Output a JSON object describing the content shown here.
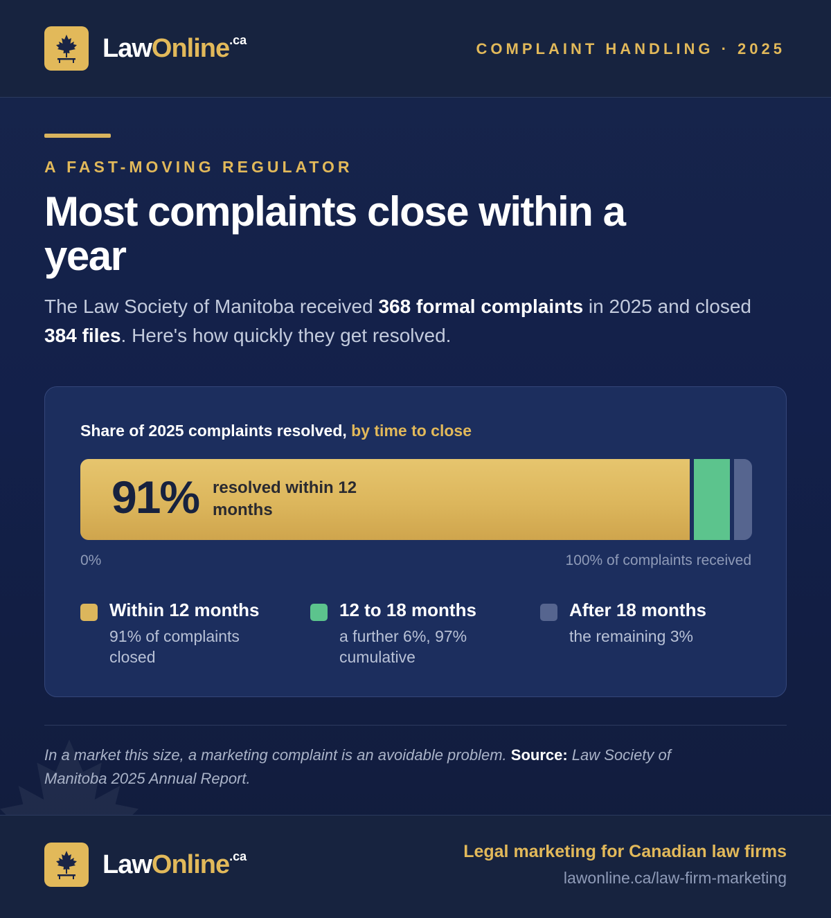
{
  "header": {
    "brand_law": "Law",
    "brand_online": "Online",
    "brand_ca": ".ca",
    "tag": "COMPLAINT HANDLING · 2025"
  },
  "intro": {
    "eyebrow": "A FAST-MOVING REGULATOR",
    "headline": "Most complaints close within a year",
    "lede_1": "The Law Society of Manitoba received ",
    "lede_2": "368 formal complaints",
    "lede_3": " in 2025 and closed ",
    "lede_4": "384 files",
    "lede_5": ". Here's how quickly they get resolved."
  },
  "chart_data": {
    "type": "bar",
    "orientation": "horizontal-stacked",
    "title": "Share of 2025 complaints resolved, ",
    "title_highlight": "by time to close",
    "big_value_label": "91%",
    "big_caption": "resolved within 12 months",
    "axis_min_label": "0%",
    "axis_max_label": "100% of complaints received",
    "xlim": [
      0,
      100
    ],
    "series": [
      {
        "name": "Within 12 months",
        "value": 91,
        "desc": "91% of complaints closed",
        "color": "#dcb65c"
      },
      {
        "name": "12 to 18 months",
        "value": 6,
        "desc": "a further 6%, 97% cumulative",
        "color": "#5cc48d"
      },
      {
        "name": "After 18 months",
        "value": 3,
        "desc": "the remaining 3%",
        "color": "#56658f"
      }
    ]
  },
  "footnote": {
    "text_1": "In a market this size, a marketing complaint is an avoidable problem. ",
    "source_label": "Source:",
    "text_2": " Law Society of Manitoba 2025 Annual Report."
  },
  "footer": {
    "tagline": "Legal marketing for Canadian law firms",
    "url": "lawonline.ca/law-firm-marketing"
  },
  "colors": {
    "accent_gold": "#e2b95a",
    "green": "#5cc48d",
    "slate": "#56658f",
    "navy": "#17233f"
  },
  "icons": {
    "logo": "maple-leaf-icon"
  }
}
